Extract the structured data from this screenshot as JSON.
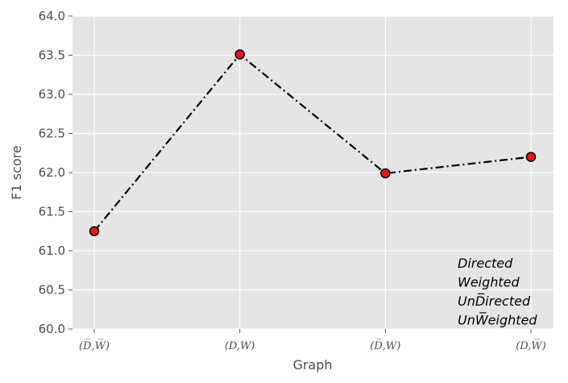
{
  "chart_data": {
    "type": "line",
    "title": "",
    "xlabel": "Graph",
    "ylabel": "F1 score",
    "categories": [
      "(D̅,W̅)",
      "(D,W)",
      "(D̅,W)",
      "(D,W̅)"
    ],
    "values": [
      61.25,
      63.51,
      61.99,
      62.2
    ],
    "ylim": [
      60.0,
      64.0
    ],
    "yticks": [
      "60.0",
      "60.5",
      "61.0",
      "61.5",
      "62.0",
      "62.5",
      "63.0",
      "63.5",
      "64.0"
    ],
    "grid": true,
    "line_style": "dash-dot",
    "colors": {
      "line": "#000000",
      "marker_fill": "#e8141c",
      "plot_bg": "#e5e5e5",
      "grid": "#ffffff"
    },
    "annotations": [
      {
        "text": "Directed"
      },
      {
        "text": "Weighted"
      },
      {
        "text": "UnD̅irected"
      },
      {
        "text": "UnW̅eighted"
      }
    ]
  }
}
